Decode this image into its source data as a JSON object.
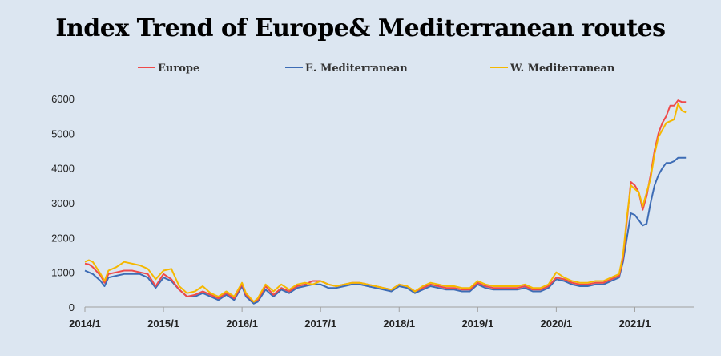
{
  "chart_data": {
    "type": "line",
    "title": "Index Trend of Europe& Mediterranean routes",
    "xlabel": "",
    "ylabel": "",
    "ylim": [
      0,
      6000
    ],
    "y_ticks": [
      0,
      1000,
      2000,
      3000,
      4000,
      5000,
      6000
    ],
    "x_ticks": [
      "2014/1",
      "2015/1",
      "2016/1",
      "2017/1",
      "2018/1",
      "2019/1",
      "2020/1",
      "2021/1"
    ],
    "xlim": [
      2014.0,
      2021.75
    ],
    "grid": false,
    "legend_position": "top",
    "series": [
      {
        "name": "Europe",
        "color": "#ef4a4a",
        "points": [
          [
            2014.0,
            1250
          ],
          [
            2014.05,
            1230
          ],
          [
            2014.1,
            1150
          ],
          [
            2014.2,
            900
          ],
          [
            2014.25,
            700
          ],
          [
            2014.3,
            950
          ],
          [
            2014.4,
            1000
          ],
          [
            2014.5,
            1050
          ],
          [
            2014.6,
            1050
          ],
          [
            2014.7,
            1000
          ],
          [
            2014.8,
            950
          ],
          [
            2014.9,
            600
          ],
          [
            2015.0,
            950
          ],
          [
            2015.1,
            800
          ],
          [
            2015.2,
            500
          ],
          [
            2015.3,
            300
          ],
          [
            2015.4,
            350
          ],
          [
            2015.5,
            450
          ],
          [
            2015.6,
            350
          ],
          [
            2015.7,
            250
          ],
          [
            2015.8,
            400
          ],
          [
            2015.9,
            250
          ],
          [
            2016.0,
            650
          ],
          [
            2016.05,
            350
          ],
          [
            2016.15,
            150
          ],
          [
            2016.2,
            200
          ],
          [
            2016.3,
            600
          ],
          [
            2016.4,
            350
          ],
          [
            2016.5,
            550
          ],
          [
            2016.6,
            450
          ],
          [
            2016.7,
            600
          ],
          [
            2016.8,
            650
          ],
          [
            2016.9,
            750
          ],
          [
            2017.0,
            750
          ],
          [
            2017.1,
            650
          ],
          [
            2017.2,
            600
          ],
          [
            2017.3,
            650
          ],
          [
            2017.4,
            700
          ],
          [
            2017.5,
            700
          ],
          [
            2017.6,
            650
          ],
          [
            2017.7,
            600
          ],
          [
            2017.8,
            550
          ],
          [
            2017.9,
            500
          ],
          [
            2018.0,
            650
          ],
          [
            2018.1,
            600
          ],
          [
            2018.2,
            450
          ],
          [
            2018.3,
            550
          ],
          [
            2018.4,
            650
          ],
          [
            2018.5,
            600
          ],
          [
            2018.6,
            550
          ],
          [
            2018.7,
            550
          ],
          [
            2018.8,
            500
          ],
          [
            2018.9,
            500
          ],
          [
            2019.0,
            700
          ],
          [
            2019.1,
            600
          ],
          [
            2019.2,
            550
          ],
          [
            2019.3,
            550
          ],
          [
            2019.4,
            550
          ],
          [
            2019.5,
            550
          ],
          [
            2019.6,
            600
          ],
          [
            2019.7,
            500
          ],
          [
            2019.8,
            500
          ],
          [
            2019.9,
            600
          ],
          [
            2020.0,
            850
          ],
          [
            2020.1,
            800
          ],
          [
            2020.2,
            700
          ],
          [
            2020.3,
            650
          ],
          [
            2020.4,
            650
          ],
          [
            2020.5,
            700
          ],
          [
            2020.6,
            700
          ],
          [
            2020.7,
            800
          ],
          [
            2020.8,
            900
          ],
          [
            2020.85,
            1400
          ],
          [
            2020.9,
            2500
          ],
          [
            2020.95,
            3600
          ],
          [
            2021.0,
            3500
          ],
          [
            2021.05,
            3300
          ],
          [
            2021.1,
            2800
          ],
          [
            2021.15,
            3200
          ],
          [
            2021.2,
            3800
          ],
          [
            2021.25,
            4500
          ],
          [
            2021.3,
            5000
          ],
          [
            2021.35,
            5300
          ],
          [
            2021.4,
            5500
          ],
          [
            2021.45,
            5800
          ],
          [
            2021.5,
            5800
          ],
          [
            2021.55,
            5950
          ],
          [
            2021.6,
            5900
          ],
          [
            2021.65,
            5900
          ]
        ]
      },
      {
        "name": "E. Mediterranean",
        "color": "#3d6cb5",
        "points": [
          [
            2014.0,
            1050
          ],
          [
            2014.05,
            1000
          ],
          [
            2014.1,
            950
          ],
          [
            2014.2,
            750
          ],
          [
            2014.25,
            600
          ],
          [
            2014.3,
            850
          ],
          [
            2014.4,
            900
          ],
          [
            2014.5,
            950
          ],
          [
            2014.6,
            950
          ],
          [
            2014.7,
            950
          ],
          [
            2014.8,
            850
          ],
          [
            2014.9,
            550
          ],
          [
            2015.0,
            850
          ],
          [
            2015.1,
            750
          ],
          [
            2015.2,
            500
          ],
          [
            2015.3,
            300
          ],
          [
            2015.4,
            300
          ],
          [
            2015.5,
            400
          ],
          [
            2015.6,
            300
          ],
          [
            2015.7,
            200
          ],
          [
            2015.8,
            350
          ],
          [
            2015.9,
            200
          ],
          [
            2016.0,
            600
          ],
          [
            2016.05,
            300
          ],
          [
            2016.15,
            100
          ],
          [
            2016.2,
            150
          ],
          [
            2016.3,
            500
          ],
          [
            2016.4,
            300
          ],
          [
            2016.5,
            500
          ],
          [
            2016.6,
            400
          ],
          [
            2016.7,
            550
          ],
          [
            2016.8,
            600
          ],
          [
            2016.9,
            650
          ],
          [
            2017.0,
            650
          ],
          [
            2017.1,
            550
          ],
          [
            2017.2,
            550
          ],
          [
            2017.3,
            600
          ],
          [
            2017.4,
            650
          ],
          [
            2017.5,
            650
          ],
          [
            2017.6,
            600
          ],
          [
            2017.7,
            550
          ],
          [
            2017.8,
            500
          ],
          [
            2017.9,
            450
          ],
          [
            2018.0,
            600
          ],
          [
            2018.1,
            550
          ],
          [
            2018.2,
            400
          ],
          [
            2018.3,
            500
          ],
          [
            2018.4,
            600
          ],
          [
            2018.5,
            550
          ],
          [
            2018.6,
            500
          ],
          [
            2018.7,
            500
          ],
          [
            2018.8,
            450
          ],
          [
            2018.9,
            450
          ],
          [
            2019.0,
            650
          ],
          [
            2019.1,
            550
          ],
          [
            2019.2,
            500
          ],
          [
            2019.3,
            500
          ],
          [
            2019.4,
            500
          ],
          [
            2019.5,
            500
          ],
          [
            2019.6,
            550
          ],
          [
            2019.7,
            450
          ],
          [
            2019.8,
            450
          ],
          [
            2019.9,
            550
          ],
          [
            2020.0,
            800
          ],
          [
            2020.1,
            750
          ],
          [
            2020.2,
            650
          ],
          [
            2020.3,
            600
          ],
          [
            2020.4,
            600
          ],
          [
            2020.5,
            650
          ],
          [
            2020.6,
            650
          ],
          [
            2020.7,
            750
          ],
          [
            2020.8,
            850
          ],
          [
            2020.85,
            1300
          ],
          [
            2020.9,
            2000
          ],
          [
            2020.95,
            2700
          ],
          [
            2021.0,
            2650
          ],
          [
            2021.05,
            2500
          ],
          [
            2021.1,
            2350
          ],
          [
            2021.15,
            2400
          ],
          [
            2021.2,
            3000
          ],
          [
            2021.25,
            3500
          ],
          [
            2021.3,
            3800
          ],
          [
            2021.35,
            4000
          ],
          [
            2021.4,
            4150
          ],
          [
            2021.45,
            4150
          ],
          [
            2021.5,
            4200
          ],
          [
            2021.55,
            4300
          ],
          [
            2021.6,
            4300
          ],
          [
            2021.65,
            4300
          ]
        ]
      },
      {
        "name": "W. Mediterranean",
        "color": "#f5b800",
        "points": [
          [
            2014.0,
            1300
          ],
          [
            2014.05,
            1350
          ],
          [
            2014.1,
            1300
          ],
          [
            2014.2,
            950
          ],
          [
            2014.25,
            750
          ],
          [
            2014.3,
            1050
          ],
          [
            2014.4,
            1150
          ],
          [
            2014.5,
            1300
          ],
          [
            2014.6,
            1250
          ],
          [
            2014.7,
            1200
          ],
          [
            2014.8,
            1100
          ],
          [
            2014.9,
            800
          ],
          [
            2015.0,
            1050
          ],
          [
            2015.1,
            1100
          ],
          [
            2015.2,
            600
          ],
          [
            2015.3,
            400
          ],
          [
            2015.4,
            450
          ],
          [
            2015.5,
            600
          ],
          [
            2015.6,
            400
          ],
          [
            2015.7,
            300
          ],
          [
            2015.8,
            450
          ],
          [
            2015.9,
            300
          ],
          [
            2016.0,
            700
          ],
          [
            2016.05,
            400
          ],
          [
            2016.15,
            150
          ],
          [
            2016.2,
            250
          ],
          [
            2016.3,
            650
          ],
          [
            2016.4,
            450
          ],
          [
            2016.5,
            650
          ],
          [
            2016.6,
            500
          ],
          [
            2016.7,
            650
          ],
          [
            2016.8,
            700
          ],
          [
            2016.9,
            650
          ],
          [
            2017.0,
            750
          ],
          [
            2017.1,
            650
          ],
          [
            2017.2,
            600
          ],
          [
            2017.3,
            650
          ],
          [
            2017.4,
            700
          ],
          [
            2017.5,
            700
          ],
          [
            2017.6,
            650
          ],
          [
            2017.7,
            600
          ],
          [
            2017.8,
            550
          ],
          [
            2017.9,
            500
          ],
          [
            2018.0,
            650
          ],
          [
            2018.1,
            600
          ],
          [
            2018.2,
            450
          ],
          [
            2018.3,
            600
          ],
          [
            2018.4,
            700
          ],
          [
            2018.5,
            650
          ],
          [
            2018.6,
            600
          ],
          [
            2018.7,
            600
          ],
          [
            2018.8,
            550
          ],
          [
            2018.9,
            550
          ],
          [
            2019.0,
            750
          ],
          [
            2019.1,
            650
          ],
          [
            2019.2,
            600
          ],
          [
            2019.3,
            600
          ],
          [
            2019.4,
            600
          ],
          [
            2019.5,
            600
          ],
          [
            2019.6,
            650
          ],
          [
            2019.7,
            550
          ],
          [
            2019.8,
            550
          ],
          [
            2019.9,
            650
          ],
          [
            2020.0,
            1000
          ],
          [
            2020.1,
            850
          ],
          [
            2020.2,
            750
          ],
          [
            2020.3,
            700
          ],
          [
            2020.4,
            700
          ],
          [
            2020.5,
            750
          ],
          [
            2020.6,
            750
          ],
          [
            2020.7,
            850
          ],
          [
            2020.8,
            950
          ],
          [
            2020.85,
            1500
          ],
          [
            2020.9,
            2600
          ],
          [
            2020.95,
            3500
          ],
          [
            2021.0,
            3400
          ],
          [
            2021.05,
            3300
          ],
          [
            2021.1,
            2900
          ],
          [
            2021.15,
            3300
          ],
          [
            2021.2,
            3700
          ],
          [
            2021.25,
            4400
          ],
          [
            2021.3,
            4900
          ],
          [
            2021.35,
            5100
          ],
          [
            2021.4,
            5300
          ],
          [
            2021.45,
            5350
          ],
          [
            2021.5,
            5400
          ],
          [
            2021.55,
            5850
          ],
          [
            2021.6,
            5650
          ],
          [
            2021.65,
            5600
          ]
        ]
      }
    ]
  }
}
